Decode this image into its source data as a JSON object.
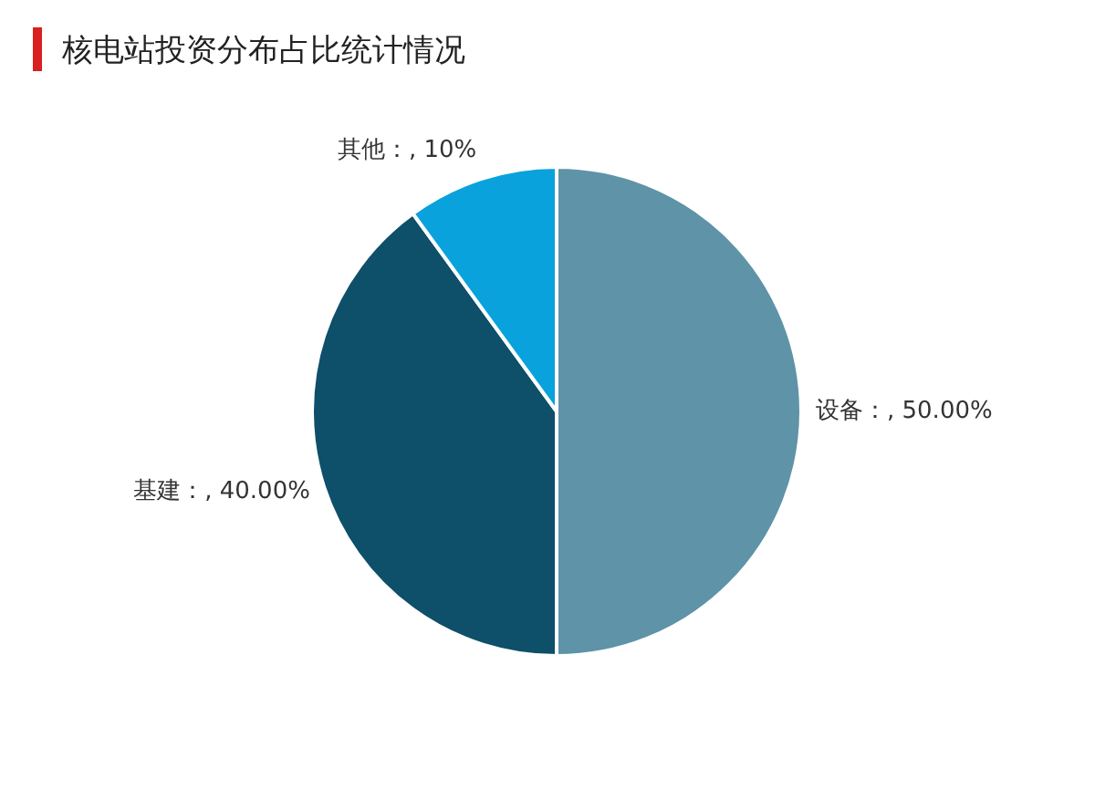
{
  "chart_data": {
    "type": "pie",
    "title": "核电站投资分布占比统计情况",
    "categories": [
      "设备",
      "基建",
      "其他"
    ],
    "values": [
      50,
      40,
      10
    ],
    "colors": [
      "#5e93a8",
      "#0e4f6a",
      "#0aa2dc"
    ],
    "value_labels": [
      ", 50.00%",
      ", 40.00%",
      ", 10%"
    ],
    "legend": false
  }
}
